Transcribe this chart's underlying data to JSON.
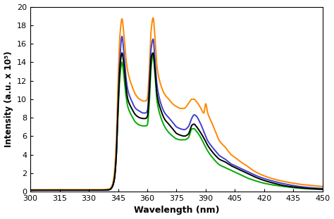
{
  "title": "",
  "xlabel": "Wavelength (nm)",
  "ylabel": "Intensity (a.u. x 10⁵)",
  "xlim": [
    300,
    450
  ],
  "ylim": [
    0,
    20
  ],
  "yticks": [
    0,
    2,
    4,
    6,
    8,
    10,
    12,
    14,
    16,
    18,
    20
  ],
  "xticks": [
    300,
    315,
    330,
    345,
    360,
    375,
    390,
    405,
    420,
    435,
    450
  ],
  "colors": {
    "black": "#000000",
    "blue": "#4040cc",
    "green": "#00aa00",
    "orange": "#ff8800"
  },
  "keypoints_black": [
    [
      300,
      0.15
    ],
    [
      305,
      0.15
    ],
    [
      310,
      0.15
    ],
    [
      315,
      0.15
    ],
    [
      320,
      0.15
    ],
    [
      325,
      0.15
    ],
    [
      330,
      0.15
    ],
    [
      335,
      0.15
    ],
    [
      338,
      0.16
    ],
    [
      340,
      0.18
    ],
    [
      341,
      0.25
    ],
    [
      342,
      0.5
    ],
    [
      343,
      1.2
    ],
    [
      344,
      3.5
    ],
    [
      345,
      9.0
    ],
    [
      346,
      13.5
    ],
    [
      347,
      15.0
    ],
    [
      348,
      13.8
    ],
    [
      349,
      11.5
    ],
    [
      350,
      10.0
    ],
    [
      352,
      9.0
    ],
    [
      354,
      8.3
    ],
    [
      356,
      8.0
    ],
    [
      358,
      7.9
    ],
    [
      359,
      7.9
    ],
    [
      360,
      8.1
    ],
    [
      361,
      10.5
    ],
    [
      362,
      14.5
    ],
    [
      363,
      15.0
    ],
    [
      364,
      13.0
    ],
    [
      365,
      10.5
    ],
    [
      367,
      8.8
    ],
    [
      369,
      7.8
    ],
    [
      371,
      7.3
    ],
    [
      373,
      6.8
    ],
    [
      375,
      6.3
    ],
    [
      377,
      6.1
    ],
    [
      379,
      6.0
    ],
    [
      381,
      6.2
    ],
    [
      383,
      7.2
    ],
    [
      384,
      7.3
    ],
    [
      385,
      7.1
    ],
    [
      387,
      6.5
    ],
    [
      389,
      5.8
    ],
    [
      391,
      5.0
    ],
    [
      393,
      4.4
    ],
    [
      395,
      3.9
    ],
    [
      397,
      3.5
    ],
    [
      400,
      3.2
    ],
    [
      403,
      2.8
    ],
    [
      405,
      2.6
    ],
    [
      408,
      2.3
    ],
    [
      411,
      2.0
    ],
    [
      415,
      1.6
    ],
    [
      420,
      1.2
    ],
    [
      425,
      0.9
    ],
    [
      430,
      0.65
    ],
    [
      435,
      0.5
    ],
    [
      440,
      0.38
    ],
    [
      445,
      0.3
    ],
    [
      450,
      0.25
    ]
  ],
  "keypoints_blue": [
    [
      300,
      0.15
    ],
    [
      305,
      0.15
    ],
    [
      310,
      0.15
    ],
    [
      315,
      0.15
    ],
    [
      320,
      0.15
    ],
    [
      325,
      0.15
    ],
    [
      330,
      0.15
    ],
    [
      335,
      0.15
    ],
    [
      338,
      0.16
    ],
    [
      340,
      0.18
    ],
    [
      341,
      0.25
    ],
    [
      342,
      0.5
    ],
    [
      343,
      1.2
    ],
    [
      344,
      3.5
    ],
    [
      345,
      9.5
    ],
    [
      346,
      14.5
    ],
    [
      347,
      16.8
    ],
    [
      348,
      15.0
    ],
    [
      349,
      12.5
    ],
    [
      350,
      11.0
    ],
    [
      352,
      9.8
    ],
    [
      354,
      9.0
    ],
    [
      356,
      8.7
    ],
    [
      358,
      8.5
    ],
    [
      359,
      8.5
    ],
    [
      360,
      8.7
    ],
    [
      361,
      11.5
    ],
    [
      362,
      15.5
    ],
    [
      363,
      16.5
    ],
    [
      364,
      14.0
    ],
    [
      365,
      11.5
    ],
    [
      367,
      9.5
    ],
    [
      369,
      8.5
    ],
    [
      371,
      8.0
    ],
    [
      373,
      7.5
    ],
    [
      375,
      7.0
    ],
    [
      377,
      6.8
    ],
    [
      379,
      6.7
    ],
    [
      381,
      7.0
    ],
    [
      383,
      8.0
    ],
    [
      384,
      8.3
    ],
    [
      385,
      8.2
    ],
    [
      387,
      7.5
    ],
    [
      389,
      6.5
    ],
    [
      391,
      5.5
    ],
    [
      393,
      4.9
    ],
    [
      395,
      4.4
    ],
    [
      397,
      3.9
    ],
    [
      400,
      3.5
    ],
    [
      403,
      3.0
    ],
    [
      405,
      2.8
    ],
    [
      408,
      2.5
    ],
    [
      411,
      2.2
    ],
    [
      415,
      1.8
    ],
    [
      420,
      1.4
    ],
    [
      425,
      1.1
    ],
    [
      430,
      0.85
    ],
    [
      435,
      0.65
    ],
    [
      440,
      0.5
    ],
    [
      445,
      0.4
    ],
    [
      450,
      0.33
    ]
  ],
  "keypoints_green": [
    [
      300,
      0.15
    ],
    [
      305,
      0.15
    ],
    [
      310,
      0.15
    ],
    [
      315,
      0.15
    ],
    [
      320,
      0.15
    ],
    [
      325,
      0.15
    ],
    [
      330,
      0.15
    ],
    [
      335,
      0.15
    ],
    [
      338,
      0.16
    ],
    [
      340,
      0.18
    ],
    [
      341,
      0.25
    ],
    [
      342,
      0.5
    ],
    [
      343,
      1.2
    ],
    [
      344,
      3.5
    ],
    [
      345,
      8.5
    ],
    [
      346,
      12.5
    ],
    [
      347,
      14.0
    ],
    [
      348,
      12.5
    ],
    [
      349,
      10.5
    ],
    [
      350,
      9.2
    ],
    [
      352,
      8.2
    ],
    [
      354,
      7.5
    ],
    [
      356,
      7.2
    ],
    [
      358,
      7.1
    ],
    [
      359,
      7.1
    ],
    [
      360,
      7.2
    ],
    [
      361,
      9.5
    ],
    [
      362,
      13.5
    ],
    [
      363,
      14.8
    ],
    [
      364,
      12.5
    ],
    [
      365,
      9.8
    ],
    [
      367,
      8.0
    ],
    [
      369,
      7.0
    ],
    [
      371,
      6.4
    ],
    [
      373,
      6.0
    ],
    [
      375,
      5.7
    ],
    [
      377,
      5.6
    ],
    [
      379,
      5.6
    ],
    [
      381,
      5.8
    ],
    [
      383,
      6.8
    ],
    [
      384,
      6.8
    ],
    [
      385,
      6.6
    ],
    [
      387,
      6.0
    ],
    [
      389,
      5.2
    ],
    [
      391,
      4.4
    ],
    [
      393,
      3.8
    ],
    [
      395,
      3.3
    ],
    [
      397,
      2.9
    ],
    [
      400,
      2.6
    ],
    [
      403,
      2.3
    ],
    [
      405,
      2.1
    ],
    [
      408,
      1.8
    ],
    [
      411,
      1.5
    ],
    [
      415,
      1.2
    ],
    [
      420,
      0.9
    ],
    [
      425,
      0.7
    ],
    [
      430,
      0.55
    ],
    [
      435,
      0.42
    ],
    [
      440,
      0.33
    ],
    [
      445,
      0.27
    ],
    [
      450,
      0.23
    ]
  ],
  "keypoints_orange": [
    [
      300,
      0.2
    ],
    [
      305,
      0.2
    ],
    [
      310,
      0.2
    ],
    [
      315,
      0.2
    ],
    [
      320,
      0.2
    ],
    [
      325,
      0.2
    ],
    [
      330,
      0.2
    ],
    [
      335,
      0.2
    ],
    [
      338,
      0.22
    ],
    [
      340,
      0.25
    ],
    [
      341,
      0.35
    ],
    [
      342,
      0.7
    ],
    [
      343,
      1.8
    ],
    [
      344,
      5.0
    ],
    [
      345,
      12.0
    ],
    [
      346,
      17.0
    ],
    [
      347,
      18.7
    ],
    [
      348,
      17.0
    ],
    [
      349,
      14.5
    ],
    [
      350,
      13.0
    ],
    [
      352,
      11.5
    ],
    [
      354,
      10.5
    ],
    [
      356,
      10.0
    ],
    [
      358,
      9.8
    ],
    [
      359,
      9.8
    ],
    [
      360,
      10.0
    ],
    [
      361,
      13.0
    ],
    [
      362,
      17.5
    ],
    [
      363,
      18.8
    ],
    [
      364,
      16.5
    ],
    [
      365,
      13.5
    ],
    [
      367,
      11.5
    ],
    [
      369,
      10.5
    ],
    [
      371,
      10.0
    ],
    [
      373,
      9.5
    ],
    [
      375,
      9.2
    ],
    [
      377,
      9.0
    ],
    [
      379,
      9.0
    ],
    [
      381,
      9.5
    ],
    [
      383,
      10.0
    ],
    [
      384,
      10.0
    ],
    [
      385,
      9.8
    ],
    [
      387,
      9.2
    ],
    [
      389,
      8.5
    ],
    [
      390,
      9.5
    ],
    [
      391,
      8.5
    ],
    [
      393,
      7.5
    ],
    [
      395,
      6.5
    ],
    [
      397,
      5.5
    ],
    [
      400,
      4.8
    ],
    [
      403,
      4.0
    ],
    [
      405,
      3.7
    ],
    [
      408,
      3.2
    ],
    [
      411,
      2.8
    ],
    [
      415,
      2.2
    ],
    [
      420,
      1.7
    ],
    [
      425,
      1.35
    ],
    [
      430,
      1.1
    ],
    [
      435,
      0.9
    ],
    [
      440,
      0.75
    ],
    [
      445,
      0.65
    ],
    [
      450,
      0.55
    ]
  ]
}
